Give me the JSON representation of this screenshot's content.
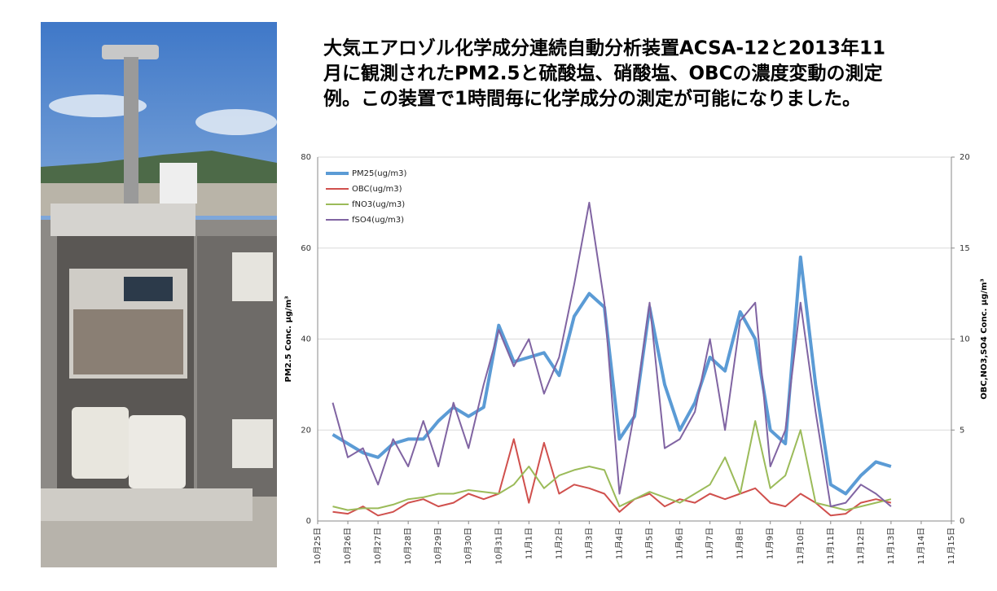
{
  "chart_data": {
    "type": "line",
    "title": [
      "大気エアロゾル化学成分連続自動分析装置ACSA-12と2013年11",
      "月に観測されたPM2.5と硫酸塩、硝酸塩、OBCの濃度変動の測定",
      "例。この装置で1時間毎に化学成分の測定が可能になりました。"
    ],
    "y_label": "PM2.5 Conc. μg/m³",
    "y2_label": "OBC,NO3,SO4 Conc. μg/m³",
    "xlim": [
      0,
      21
    ],
    "xticks": [
      {
        "value": 0,
        "label": "10月25日"
      },
      {
        "value": 1,
        "label": "10月26日"
      },
      {
        "value": 2,
        "label": "10月27日"
      },
      {
        "value": 3,
        "label": "10月28日"
      },
      {
        "value": 4,
        "label": "10月29日"
      },
      {
        "value": 5,
        "label": "10月30日"
      },
      {
        "value": 6,
        "label": "10月31日"
      },
      {
        "value": 7,
        "label": "11月1日"
      },
      {
        "value": 8,
        "label": "11月2日"
      },
      {
        "value": 9,
        "label": "11月3日"
      },
      {
        "value": 10,
        "label": "11月4日"
      },
      {
        "value": 11,
        "label": "11月5日"
      },
      {
        "value": 12,
        "label": "11月6日"
      },
      {
        "value": 13,
        "label": "11月7日"
      },
      {
        "value": 14,
        "label": "11月8日"
      },
      {
        "value": 15,
        "label": "11月9日"
      },
      {
        "value": 16,
        "label": "11月10日"
      },
      {
        "value": 17,
        "label": "11月11日"
      },
      {
        "value": 18,
        "label": "11月12日"
      },
      {
        "value": 19,
        "label": "11月13日"
      },
      {
        "value": 20,
        "label": "11月14日"
      },
      {
        "value": 21,
        "label": "11月15日"
      }
    ],
    "ylim": [
      0,
      80
    ],
    "yticks": [
      0,
      20,
      40,
      60,
      80
    ],
    "y2lim": [
      0,
      20
    ],
    "y2ticks": [
      0,
      5,
      10,
      15,
      20
    ],
    "grid": true,
    "legend": "top-left",
    "x": [
      0.5,
      1,
      1.5,
      2,
      2.5,
      3,
      3.5,
      4,
      4.5,
      5,
      5.5,
      6,
      6.5,
      7,
      7.5,
      8,
      8.5,
      9,
      9.5,
      10,
      10.5,
      11,
      11.5,
      12,
      12.5,
      13,
      13.5,
      14,
      14.5,
      15,
      15.5,
      16,
      16.5,
      17,
      17.5,
      18,
      18.5,
      19
    ],
    "series": [
      {
        "name": "PM25(ug/m3)",
        "color": "#5b9bd5",
        "axis": "y",
        "values": [
          19,
          17,
          15,
          14,
          17,
          18,
          18,
          22,
          25,
          23,
          25,
          43,
          35,
          36,
          37,
          32,
          45,
          50,
          47,
          18,
          23,
          47,
          30,
          20,
          26,
          36,
          33,
          46,
          40,
          20,
          17,
          58,
          30,
          8,
          6,
          10,
          13,
          12
        ]
      },
      {
        "name": "OBC(ug/m3)",
        "color": "#d0504d",
        "axis": "y2",
        "values": [
          0.5,
          0.4,
          0.8,
          0.3,
          0.5,
          1,
          1.2,
          0.8,
          1,
          1.5,
          1.2,
          1.5,
          4.5,
          1,
          4.3,
          1.5,
          2,
          1.8,
          1.5,
          0.5,
          1.2,
          1.5,
          0.8,
          1.2,
          1,
          1.5,
          1.2,
          1.5,
          1.8,
          1,
          0.8,
          1.5,
          1,
          0.3,
          0.4,
          1,
          1.2,
          1
        ]
      },
      {
        "name": "fNO3(ug/m3)",
        "color": "#9bbb59",
        "axis": "y2",
        "values": [
          0.8,
          0.6,
          0.7,
          0.7,
          0.9,
          1.2,
          1.3,
          1.5,
          1.5,
          1.7,
          1.6,
          1.5,
          2,
          3,
          1.8,
          2.5,
          2.8,
          3,
          2.8,
          0.8,
          1.2,
          1.6,
          1.3,
          1,
          1.5,
          2,
          3.5,
          1.5,
          5.5,
          1.8,
          2.5,
          5,
          1,
          0.8,
          0.6,
          0.8,
          1,
          1.2
        ]
      },
      {
        "name": "fSO4(ug/m3)",
        "color": "#8064a2",
        "axis": "y2",
        "values": [
          6.5,
          3.5,
          4,
          2,
          4.5,
          3,
          5.5,
          3,
          6.5,
          4,
          7.5,
          10.5,
          8.5,
          10,
          7,
          9,
          13,
          17.5,
          12,
          1.5,
          6,
          12,
          4,
          4.5,
          6,
          10,
          5,
          11,
          12,
          3,
          5,
          12,
          6,
          0.8,
          1,
          2,
          1.5,
          0.8
        ]
      }
    ]
  }
}
